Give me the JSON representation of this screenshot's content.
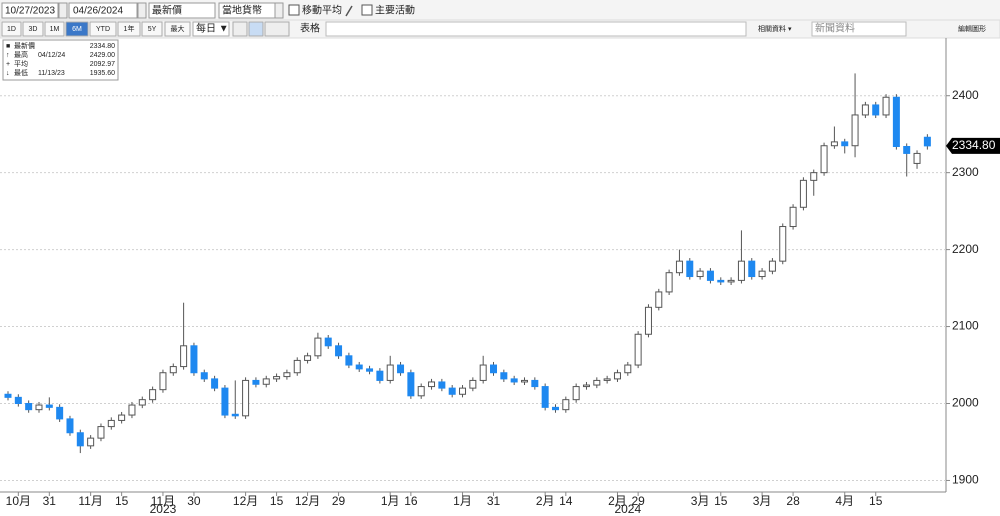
{
  "toolbar": {
    "start_date": "10/27/2023",
    "end_date": "04/26/2024",
    "field": "最新價",
    "currency": "當地貨幣",
    "moving_average": "移動平均",
    "events": "主要活動",
    "ranges": [
      "1D",
      "3D",
      "1M",
      "6M",
      "YTD",
      "1年",
      "5Y",
      "最大"
    ],
    "active_range": "6M",
    "frequency": "每日 ▼",
    "table": "表格",
    "related": "相關資料 ▾",
    "news": "新聞資料",
    "edit": "編輯圖形"
  },
  "chart_data": {
    "type": "candlestick",
    "legend": [
      {
        "name": "最新價",
        "value": 2334.8,
        "value_label": "2334.80"
      },
      {
        "name": "最高",
        "date": "04/12/24",
        "value": 2429,
        "value_label": "2429.00"
      },
      {
        "name": "平均",
        "value": 2092.97
      },
      {
        "name": "最低",
        "date": "11/13/23",
        "value": 1935.6,
        "value_label": "1935.60"
      }
    ],
    "colors": {
      "up": "#ffffff",
      "down": "#1e88f0",
      "outline": "#555555"
    },
    "categories": [
      null,
      "10月",
      null,
      null,
      "31",
      null,
      null,
      null,
      "11月",
      null,
      null,
      "15",
      null,
      null,
      null,
      "11月",
      null,
      null,
      "30",
      null,
      null,
      null,
      null,
      "12月",
      null,
      null,
      "15",
      null,
      null,
      "12月",
      null,
      null,
      "29",
      null,
      null,
      null,
      null,
      "1月",
      null,
      "16",
      null,
      null,
      null,
      null,
      "1月",
      null,
      null,
      "31",
      null,
      null,
      null,
      null,
      "2月",
      null,
      "14",
      null,
      null,
      null,
      null,
      "2月",
      null,
      "29",
      null,
      null,
      null,
      null,
      null,
      "3月",
      null,
      "15",
      null,
      null,
      null,
      "3月",
      null,
      null,
      "28",
      null,
      null,
      null,
      null,
      "4月",
      null,
      null,
      "15",
      null,
      null,
      null,
      null,
      null
    ],
    "years": [
      {
        "label": "2023",
        "index": 15
      },
      {
        "label": "2024",
        "index": 60
      }
    ],
    "open": [
      2012,
      2008,
      2000,
      1992,
      1998,
      1995,
      1980,
      1962,
      1945,
      1955,
      1970,
      1978,
      1985,
      1998,
      2005,
      2018,
      2040,
      2048,
      2075,
      2040,
      2032,
      2020,
      1986,
      1984,
      2030,
      2025,
      2032,
      2035,
      2040,
      2056,
      2062,
      2085,
      2075,
      2062,
      2050,
      2045,
      2042,
      2030,
      2050,
      2040,
      2010,
      2022,
      2028,
      2020,
      2012,
      2020,
      2030,
      2050,
      2040,
      2032,
      2028,
      2030,
      2022,
      1995,
      1992,
      2005,
      2022,
      2024,
      2030,
      2032,
      2040,
      2050,
      2090,
      2125,
      2145,
      2170,
      2185,
      2165,
      2172,
      2160,
      2158,
      2160,
      2185,
      2165,
      2172,
      2185,
      2230,
      2255,
      2290,
      2300,
      2335,
      2340,
      2335,
      2375,
      2388,
      2375,
      2398,
      2334,
      2312,
      2346
    ],
    "high": [
      2016,
      2012,
      2004,
      2002,
      2008,
      1999,
      1984,
      1966,
      1959,
      1974,
      1982,
      1989,
      2002,
      2009,
      2022,
      2044,
      2052,
      2131,
      2079,
      2044,
      2036,
      2024,
      2030,
      2034,
      2034,
      2036,
      2039,
      2044,
      2060,
      2066,
      2092,
      2089,
      2079,
      2066,
      2054,
      2049,
      2046,
      2062,
      2054,
      2044,
      2026,
      2032,
      2032,
      2024,
      2024,
      2034,
      2062,
      2054,
      2044,
      2036,
      2034,
      2034,
      2026,
      1999,
      2009,
      2026,
      2028,
      2034,
      2036,
      2044,
      2054,
      2094,
      2129,
      2149,
      2174,
      2200,
      2189,
      2176,
      2176,
      2164,
      2164,
      2225,
      2189,
      2176,
      2189,
      2234,
      2259,
      2294,
      2304,
      2339,
      2360,
      2344,
      2429,
      2392,
      2392,
      2402,
      2402,
      2338,
      2329,
      2350
    ],
    "low": [
      2004,
      1996,
      1988,
      1988,
      1991,
      1976,
      1958,
      1935.6,
      1941,
      1951,
      1966,
      1974,
      1981,
      1994,
      2001,
      2014,
      2036,
      2044,
      2036,
      2028,
      2016,
      1981,
      1980,
      1980,
      2021,
      2021,
      2028,
      2031,
      2036,
      2052,
      2058,
      2071,
      2058,
      2046,
      2041,
      2038,
      2026,
      2026,
      2036,
      2006,
      2006,
      2018,
      2016,
      2008,
      2008,
      2016,
      2026,
      2036,
      2028,
      2024,
      2024,
      2018,
      1991,
      1988,
      1988,
      2001,
      2018,
      2020,
      2026,
      2028,
      2036,
      2046,
      2086,
      2121,
      2141,
      2166,
      2161,
      2161,
      2156,
      2154,
      2154,
      2156,
      2161,
      2161,
      2168,
      2181,
      2226,
      2251,
      2270,
      2296,
      2331,
      2325,
      2320,
      2371,
      2371,
      2371,
      2330,
      2295,
      2305,
      2330
    ],
    "close": [
      2008,
      2000,
      1992,
      1998,
      1995,
      1980,
      1962,
      1945,
      1955,
      1970,
      1978,
      1985,
      1998,
      2005,
      2018,
      2040,
      2048,
      2075,
      2040,
      2032,
      2020,
      1985,
      1984,
      2030,
      2025,
      2032,
      2035,
      2040,
      2056,
      2062,
      2085,
      2075,
      2062,
      2050,
      2045,
      2042,
      2030,
      2050,
      2040,
      2010,
      2022,
      2028,
      2020,
      2012,
      2020,
      2030,
      2050,
      2040,
      2032,
      2028,
      2030,
      2022,
      1995,
      1992,
      2005,
      2022,
      2024,
      2030,
      2032,
      2040,
      2050,
      2090,
      2125,
      2145,
      2170,
      2185,
      2165,
      2172,
      2160,
      2158,
      2160,
      2185,
      2165,
      2172,
      2185,
      2230,
      2255,
      2290,
      2300,
      2335,
      2340,
      2335,
      2375,
      2388,
      2375,
      2398,
      2334,
      2325,
      2325,
      2334.8
    ],
    "ylim": [
      1885,
      2475
    ],
    "yticks": [
      1900,
      2000,
      2100,
      2200,
      2300,
      2400
    ],
    "grid": true
  }
}
